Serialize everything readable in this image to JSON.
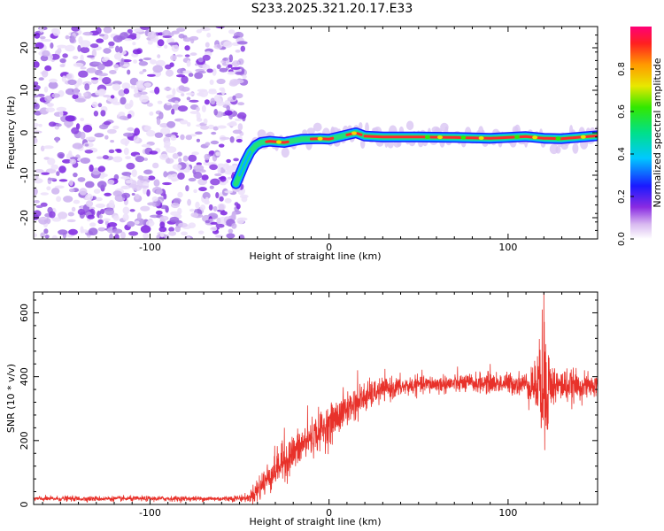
{
  "title": "S233.2025.321.20.17.E33",
  "chart_data": [
    {
      "type": "heatmap",
      "xlabel": "Height of straight line (km)",
      "ylabel": "Frequency (Hz)",
      "xlim": [
        -165,
        150
      ],
      "ylim": [
        -25,
        25
      ],
      "xticks": [
        -100,
        0,
        100
      ],
      "yticks": [
        -20,
        -10,
        0,
        10,
        20
      ],
      "colorbar": {
        "label": "Normalized spectral amplitude",
        "range": [
          0,
          1
        ],
        "ticks": [
          0.0,
          0.2,
          0.4,
          0.6,
          0.8
        ]
      },
      "ridge": {
        "description": "dominant frequency vs height",
        "x": [
          -52,
          -50,
          -47,
          -44,
          -41,
          -38,
          -33,
          -25,
          -15,
          -5,
          0,
          10,
          15,
          20,
          30,
          50,
          70,
          90,
          110,
          120,
          130,
          150
        ],
        "y": [
          -12,
          -10,
          -7,
          -4.5,
          -3,
          -2.3,
          -2,
          -2.3,
          -1.5,
          -1.4,
          -1.5,
          -0.5,
          0,
          -0.8,
          -1,
          -1,
          -1.1,
          -1.3,
          -0.9,
          -1.3,
          -1.4,
          -0.7
        ]
      },
      "noise_region_x": [
        -165,
        -47
      ]
    },
    {
      "type": "line",
      "xlabel": "Height of straight line (km)",
      "ylabel": "SNR (10 * v/v)",
      "xlim": [
        -165,
        150
      ],
      "ylim": [
        0,
        665
      ],
      "xticks": [
        -100,
        0,
        100
      ],
      "yticks": [
        0,
        200,
        400,
        600
      ],
      "series": [
        {
          "name": "SNR",
          "color": "#e8312a",
          "trend_x": [
            -165,
            -100,
            -60,
            -45,
            -40,
            -30,
            -20,
            -10,
            0,
            10,
            20,
            30,
            50,
            80,
            110,
            118,
            121,
            125,
            150
          ],
          "trend_y": [
            18,
            18,
            18,
            20,
            45,
            110,
            160,
            210,
            250,
            300,
            335,
            360,
            375,
            380,
            378,
            370,
            380,
            372,
            370
          ],
          "noise_sd": [
            4,
            4,
            4,
            6,
            22,
            28,
            30,
            30,
            30,
            28,
            24,
            18,
            14,
            15,
            18,
            60,
            100,
            30,
            16
          ],
          "spikes": [
            {
              "x": 119,
              "y": 610
            },
            {
              "x": 120,
              "y": 665
            },
            {
              "x": 120.5,
              "y": 170
            },
            {
              "x": 118.5,
              "y": 240
            },
            {
              "x": -25,
              "y": 240
            },
            {
              "x": -12,
              "y": 310
            },
            {
              "x": 16,
              "y": 420
            },
            {
              "x": 90,
              "y": 440
            }
          ]
        }
      ]
    }
  ]
}
